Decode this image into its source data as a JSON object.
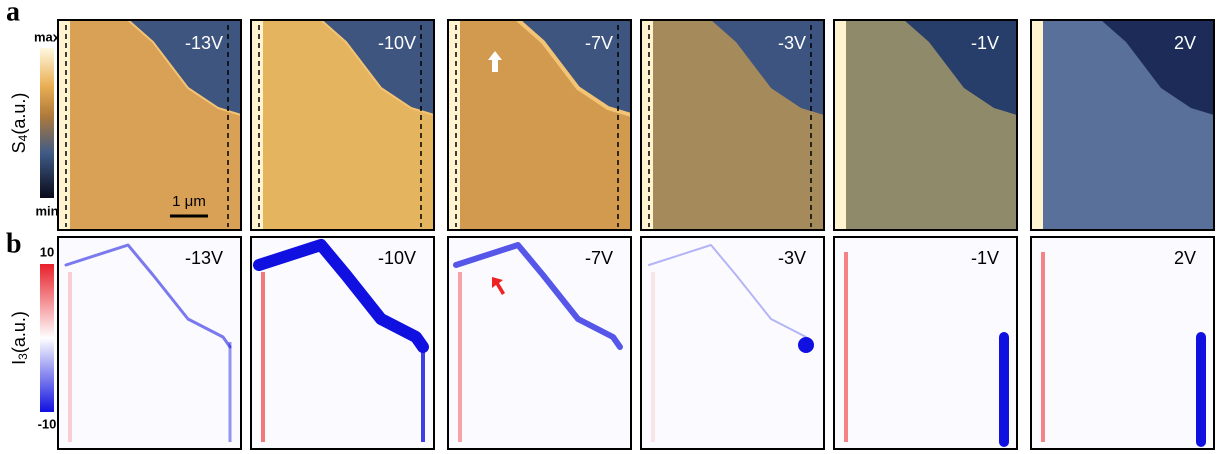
{
  "panel_a": {
    "label": "a",
    "colorbar": {
      "max": "max",
      "min": "min",
      "axis_symbol": "S",
      "axis_subscript": "4",
      "axis_unit": "(a.u.)"
    },
    "voltages": [
      "-13V",
      "-10V",
      "-7V",
      "-3V",
      "-1V",
      "2V"
    ],
    "scale_bar": "1 μm"
  },
  "panel_b": {
    "label": "b",
    "colorbar": {
      "max": 10,
      "min": -10,
      "axis_symbol": "I",
      "axis_subscript": "3",
      "axis_unit": "(a.u.)"
    },
    "voltages": [
      "-13V",
      "-10V",
      "-7V",
      "-3V",
      "-1V",
      "2V"
    ]
  }
}
